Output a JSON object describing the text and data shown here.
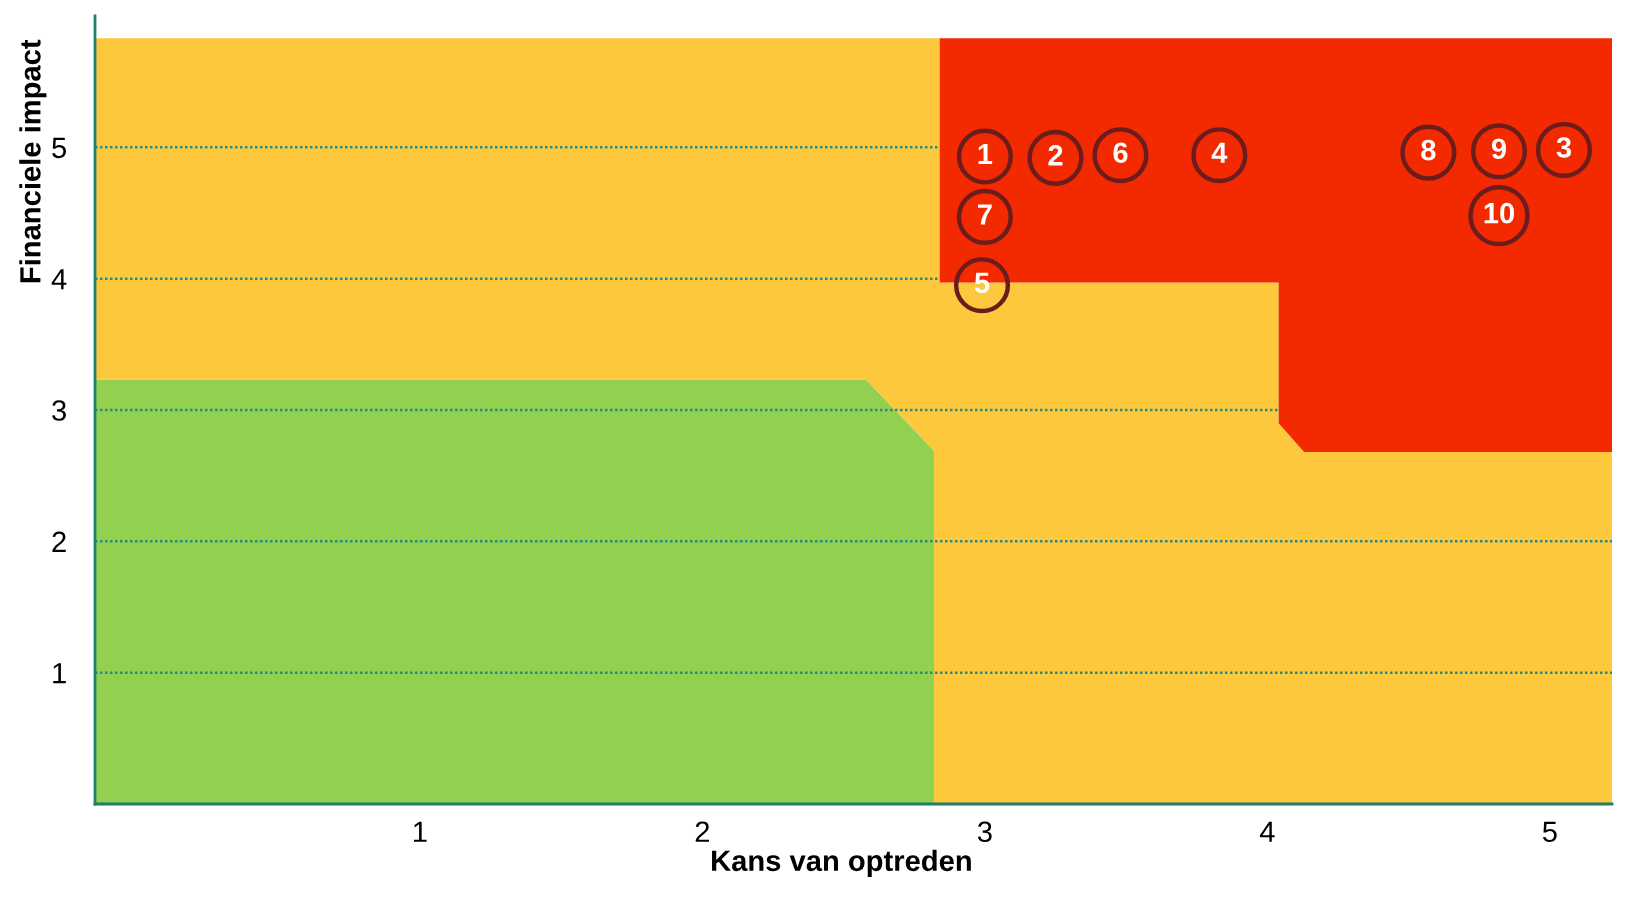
{
  "chart_data": {
    "type": "area",
    "xlabel": "Kans van optreden",
    "ylabel": "Financiele impact",
    "xlim": [
      -0.15,
      5.22
    ],
    "ylim": [
      0,
      6.0
    ],
    "xticks": [
      1,
      2,
      3,
      4,
      5
    ],
    "yticks": [
      1,
      2,
      3,
      4,
      5
    ],
    "grid": "y",
    "stacked": true,
    "x": [
      -0.15,
      2.58,
      2.82,
      2.82,
      2.84,
      2.84,
      4.04,
      4.04,
      4.13,
      5.22
    ],
    "series": [
      {
        "color": "#92d050",
        "values": [
          3.23,
          3.23,
          2.69,
          0,
          0,
          0,
          0,
          0,
          0,
          0
        ]
      },
      {
        "color": "#fdc83c",
        "values": [
          2.6,
          2.6,
          3.14,
          5.83,
          5.83,
          3.97,
          3.97,
          2.9,
          2.68,
          2.68
        ]
      },
      {
        "color": "#f32900",
        "values": [
          0,
          0,
          0,
          0,
          0,
          1.86,
          1.86,
          2.93,
          3.15,
          3.15
        ]
      }
    ],
    "annotations": [
      {
        "text": "1",
        "x": 3.0,
        "y": 4.93
      },
      {
        "text": "2",
        "x": 3.25,
        "y": 4.92
      },
      {
        "text": "3",
        "x": 5.05,
        "y": 4.98
      },
      {
        "text": "4",
        "x": 3.83,
        "y": 4.94
      },
      {
        "text": "5",
        "x": 2.99,
        "y": 3.95
      },
      {
        "text": "6",
        "x": 3.48,
        "y": 4.94
      },
      {
        "text": "7",
        "x": 3.0,
        "y": 4.47
      },
      {
        "text": "8",
        "x": 4.57,
        "y": 4.96
      },
      {
        "text": "9",
        "x": 4.82,
        "y": 4.97
      },
      {
        "text": "10",
        "x": 4.82,
        "y": 4.48
      }
    ]
  }
}
